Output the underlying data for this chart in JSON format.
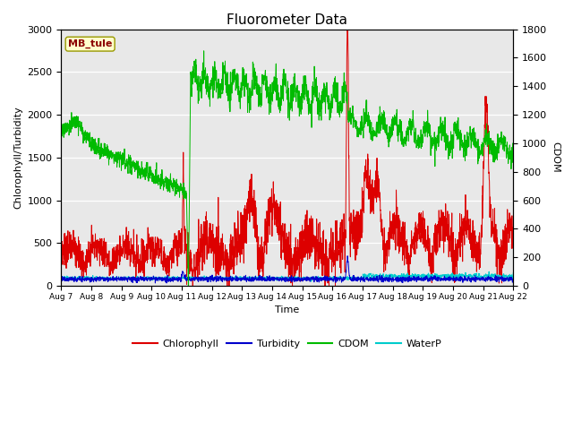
{
  "title": "Fluorometer Data",
  "xlabel": "Time",
  "ylabel_left": "Chlorophyll/Turbidity",
  "ylabel_right": "CDOM",
  "annotation": "MB_tule",
  "ylim_left": [
    0,
    3000
  ],
  "ylim_right": [
    0,
    1800
  ],
  "yticks_left": [
    0,
    500,
    1000,
    1500,
    2000,
    2500,
    3000
  ],
  "yticks_right": [
    0,
    200,
    400,
    600,
    800,
    1000,
    1200,
    1400,
    1600,
    1800
  ],
  "xtick_labels": [
    "Aug 7",
    "Aug 8",
    "Aug 9",
    "Aug 10",
    "Aug 11",
    "Aug 12",
    "Aug 13",
    "Aug 14",
    "Aug 15",
    "Aug 16",
    "Aug 17",
    "Aug 18",
    "Aug 19",
    "Aug 20",
    "Aug 21",
    "Aug 22"
  ],
  "bg_color": "#e8e8e8",
  "legend_items": [
    "Chlorophyll",
    "Turbidity",
    "CDOM",
    "WaterP"
  ],
  "legend_colors": [
    "#dd0000",
    "#0000cc",
    "#00cc00",
    "#00cccc"
  ],
  "title_fontsize": 11,
  "axis_label_fontsize": 8
}
